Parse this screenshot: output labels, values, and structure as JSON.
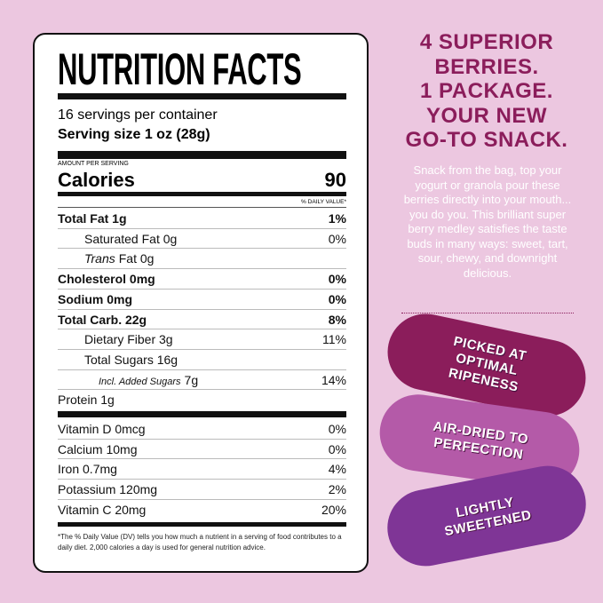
{
  "label": {
    "title": "NUTRITION FACTS",
    "servings": "16 servings per container",
    "serving_size": "Serving size 1 oz (28g)",
    "amount_per_serving": "AMOUNT PER SERVING",
    "calories": {
      "name": "Calories",
      "value": "90"
    },
    "dv_header": "% DAILY VALUE*",
    "rows": [
      {
        "name": "Total Fat 1g",
        "dv": "1%",
        "style": "bold"
      },
      {
        "name": "Saturated Fat 0g",
        "dv": "0%",
        "style": "indent"
      },
      {
        "italic": "Trans",
        "name": "Fat 0g",
        "style": "indent"
      },
      {
        "name": "Cholesterol 0mg",
        "dv": "0%",
        "style": "bold"
      },
      {
        "name": "Sodium 0mg",
        "dv": "0%",
        "style": "bold"
      },
      {
        "name": "Total Carb. 22g",
        "dv": "8%",
        "style": "bold"
      },
      {
        "name": "Dietary Fiber 3g",
        "dv": "11%",
        "style": "indent"
      },
      {
        "name": "Total Sugars 16g",
        "dv": null,
        "style": "indent"
      },
      {
        "italic": "Incl. Added Sugars",
        "name": "7g",
        "dv": "14%",
        "style": "indent2"
      },
      {
        "name": "Protein 1g",
        "style": "plain"
      }
    ],
    "vitamins": [
      {
        "name": "Vitamin D 0mcg",
        "dv": "0%"
      },
      {
        "name": "Calcium 10mg",
        "dv": "0%"
      },
      {
        "name": "Iron 0.7mg",
        "dv": "4%"
      },
      {
        "name": "Potassium 120mg",
        "dv": "2%"
      },
      {
        "name": "Vitamin C 20mg",
        "dv": "20%"
      }
    ],
    "footnote": "*The % Daily Value (DV) tells you how much a nutrient in a serving of food contributes to a daily diet. 2,000 calories a day is used for general nutrition advice."
  },
  "headline": [
    "4 SUPERIOR",
    "BERRIES.",
    "1 PACKAGE.",
    "YOUR NEW",
    "GO-TO SNACK."
  ],
  "description": "Snack from the bag, top your yogurt or granola pour these berries directly into your mouth... you do you. This brilliant super berry medley satisfies the taste buds in many ways: sweet, tart, sour, chewy, and downright delicious.",
  "badges": [
    {
      "lines": [
        "PICKED AT",
        "OPTIMAL",
        "RIPENESS"
      ],
      "color": "#8b1d5b"
    },
    {
      "lines": [
        "AIR-DRIED TO",
        "PERFECTION"
      ],
      "color": "#b45aa8"
    },
    {
      "lines": [
        "LIGHTLY",
        "SWEETENED"
      ],
      "color": "#7f3596"
    }
  ]
}
